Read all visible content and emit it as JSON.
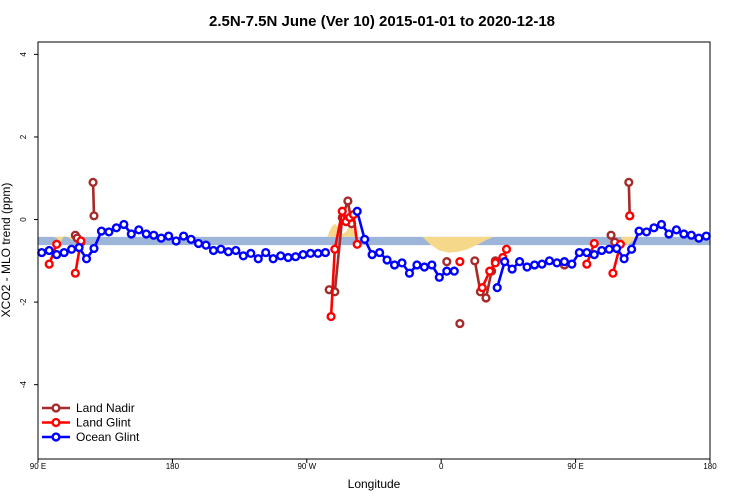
{
  "chart_data": {
    "type": "line",
    "title": "2.5N-7.5N June (Ver 10)   2015-01-01 to 2020-12-18",
    "xlabel": "Longitude",
    "ylabel": "XCO2 - MLO trend (ppm)",
    "xlim": [
      0,
      360
    ],
    "ylim": [
      -5.8,
      4.3
    ],
    "x_ticks": [
      {
        "value": 0,
        "label": "90 E"
      },
      {
        "value": 72,
        "label": "180"
      },
      {
        "value": 144,
        "label": "90 W"
      },
      {
        "value": 216,
        "label": "0"
      },
      {
        "value": 288,
        "label": "90 E"
      },
      {
        "value": 360,
        "label": "180"
      }
    ],
    "y_ticks": [
      {
        "value": 4,
        "label": "4"
      },
      {
        "value": 2,
        "label": "2"
      },
      {
        "value": 0,
        "label": "0"
      },
      {
        "value": -2,
        "label": "-2"
      },
      {
        "value": -4,
        "label": "-4"
      }
    ],
    "grid": false,
    "legend_position": "bottom-left",
    "band": {
      "color": "#9db5d9",
      "y_range": [
        -0.62,
        -0.42
      ]
    },
    "land_fill": {
      "color": "#f5d88a",
      "regions": [
        {
          "x": [
            6,
            8,
            10,
            12,
            14,
            16,
            18,
            20,
            22
          ],
          "top": [
            -0.42,
            -0.42,
            -0.45,
            -0.55,
            -0.4,
            -0.42,
            -0.5,
            -0.42,
            -0.42
          ]
        },
        {
          "x": [
            155,
            157,
            159,
            161,
            163,
            165,
            167,
            169,
            171,
            173
          ],
          "top": [
            -0.42,
            -0.2,
            -0.1,
            -0.2,
            -0.35,
            -0.3,
            -0.15,
            -0.25,
            -0.42,
            -0.42
          ]
        },
        {
          "x": [
            206,
            210,
            215,
            220,
            225,
            230,
            235,
            240,
            244
          ],
          "top": [
            -0.42,
            -0.6,
            -0.75,
            -0.8,
            -0.78,
            -0.72,
            -0.62,
            -0.5,
            -0.42
          ]
        },
        {
          "x": [
            312,
            314,
            316,
            318,
            320,
            322
          ],
          "top": [
            -0.42,
            -0.55,
            -0.62,
            -0.55,
            -0.48,
            -0.42
          ]
        }
      ]
    },
    "series": [
      {
        "name": "Land Nadir",
        "color": "#a52a2a",
        "segments": [
          {
            "x": [
              20,
              21,
              23
            ],
            "y": [
              -0.38,
              -0.45,
              -0.55
            ]
          },
          {
            "x": [
              29.5,
              30
            ],
            "y": [
              0.9,
              0.09
            ]
          },
          {
            "x": [
              156,
              159,
              163,
              166,
              168
            ],
            "y": [
              -1.7,
              -1.75,
              0.05,
              0.45,
              -0.1
            ]
          },
          {
            "x": [
              219
            ],
            "y": [
              -1.02
            ]
          },
          {
            "x": [
              226
            ],
            "y": [
              -2.52
            ]
          },
          {
            "x": [
              234,
              237,
              240,
              243,
              245
            ],
            "y": [
              -1.0,
              -1.75,
              -1.9,
              -1.25,
              -1.0
            ]
          },
          {
            "x": [
              282
            ],
            "y": [
              -1.1
            ]
          },
          {
            "x": [
              307,
              309
            ],
            "y": [
              -0.38,
              -0.55
            ]
          },
          {
            "x": [
              316.5,
              317
            ],
            "y": [
              0.9,
              0.09
            ]
          }
        ]
      },
      {
        "name": "Land Glint",
        "color": "#ff0000",
        "segments": [
          {
            "x": [
              6,
              10
            ],
            "y": [
              -1.08,
              -0.6
            ]
          },
          {
            "x": [
              20,
              23
            ],
            "y": [
              -1.3,
              -0.52
            ]
          },
          {
            "x": [
              157,
              159,
              163,
              165,
              167,
              169,
              171
            ],
            "y": [
              -2.35,
              -0.72,
              0.2,
              -0.05,
              0.05,
              0.12,
              -0.6
            ]
          },
          {
            "x": [
              226
            ],
            "y": [
              -1.02
            ]
          },
          {
            "x": [
              238,
              242,
              245,
              249,
              251
            ],
            "y": [
              -1.65,
              -1.25,
              -1.05,
              -0.92,
              -0.72
            ]
          },
          {
            "x": [
              294,
              298
            ],
            "y": [
              -1.08,
              -0.58
            ]
          },
          {
            "x": [
              308,
              312
            ],
            "y": [
              -1.3,
              -0.6
            ]
          },
          {
            "x": [
              317
            ],
            "y": [
              0.09
            ]
          }
        ]
      },
      {
        "name": "Ocean Glint",
        "color": "#0000ff",
        "segments": [
          {
            "x": [
              2,
              6,
              10,
              14,
              18,
              22,
              26,
              30,
              34,
              38,
              42,
              46,
              50,
              54,
              58,
              62,
              66,
              70,
              74,
              78,
              82,
              86,
              90,
              94,
              98,
              102,
              106,
              110,
              114,
              118,
              122,
              126,
              130,
              134,
              138,
              142,
              146,
              150,
              154
            ],
            "y": [
              -0.8,
              -0.75,
              -0.85,
              -0.8,
              -0.72,
              -0.68,
              -0.95,
              -0.7,
              -0.28,
              -0.3,
              -0.2,
              -0.12,
              -0.35,
              -0.25,
              -0.35,
              -0.38,
              -0.45,
              -0.4,
              -0.52,
              -0.4,
              -0.48,
              -0.58,
              -0.62,
              -0.75,
              -0.72,
              -0.78,
              -0.75,
              -0.88,
              -0.82,
              -0.95,
              -0.8,
              -0.95,
              -0.88,
              -0.92,
              -0.9,
              -0.85,
              -0.82,
              -0.82,
              -0.8
            ]
          },
          {
            "x": [
              171,
              175,
              179,
              183,
              187,
              191,
              195,
              199,
              203,
              207,
              211,
              215,
              219,
              223
            ],
            "y": [
              0.2,
              -0.48,
              -0.85,
              -0.8,
              -0.98,
              -1.1,
              -1.05,
              -1.3,
              -1.1,
              -1.15,
              -1.1,
              -1.4,
              -1.25,
              -1.25
            ]
          },
          {
            "x": [
              246,
              250,
              254,
              258,
              262,
              266,
              270,
              274,
              278,
              282,
              286,
              290,
              294,
              298,
              302,
              306,
              310,
              314,
              318,
              322,
              326,
              330,
              334,
              338,
              342,
              346,
              350,
              354,
              358
            ],
            "y": [
              -1.65,
              -1.02,
              -1.2,
              -1.02,
              -1.15,
              -1.1,
              -1.08,
              -1.0,
              -1.05,
              -1.02,
              -1.08,
              -0.8,
              -0.8,
              -0.85,
              -0.75,
              -0.72,
              -0.7,
              -0.95,
              -0.72,
              -0.28,
              -0.3,
              -0.2,
              -0.12,
              -0.35,
              -0.25,
              -0.35,
              -0.38,
              -0.45,
              -0.4
            ]
          }
        ]
      }
    ]
  }
}
